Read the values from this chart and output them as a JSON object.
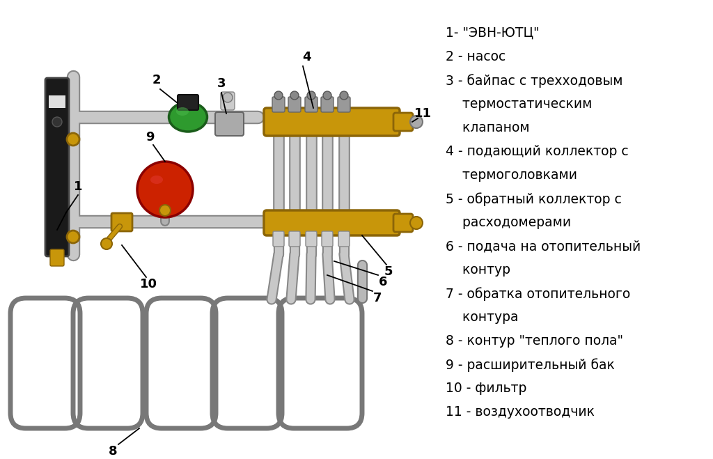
{
  "bg_color": "#ffffff",
  "legend_lines": [
    "1- \"ЭВН-ЮТЦ\"",
    "2 - насос",
    "3 - байпас с трехходовым",
    "    термостатическим",
    "    клапаном",
    "4 - подающий коллектор с",
    "    термоголовками",
    "5 - обратный коллектор с",
    "    расходомерами",
    "6 - подача на отопительный",
    "    контур",
    "7 - обратка отопительного",
    "    контура",
    "8 - контур \"теплого пола\"",
    "9 - расширительный бак",
    "10 - фильтр",
    "11 - воздухоотводчик"
  ],
  "pipe_color": "#c8c8c8",
  "pipe_edge": "#888888",
  "pipe_lw": 11,
  "brass_color": "#c8960a",
  "brass_edge": "#8b6508",
  "black_device": "#1a1a1a",
  "green_pump": "#2e9a2e",
  "green_pump_dark": "#1a5c1a",
  "red_tank": "#cc2200",
  "red_tank_dark": "#8b0000",
  "loop_color": "#b0b0b0",
  "loop_edge": "#787878",
  "font_size": 13.5
}
